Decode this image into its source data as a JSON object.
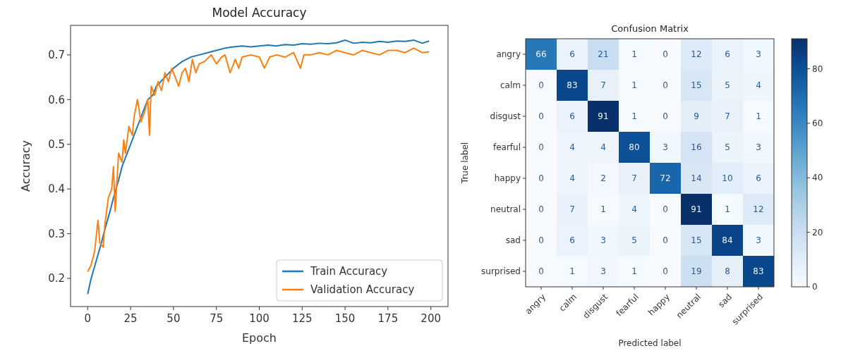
{
  "chart_data": [
    {
      "type": "line",
      "title": "Model Accuracy",
      "xlabel": "Epoch",
      "ylabel": "Accuracy",
      "xlim": [
        -10,
        210
      ],
      "ylim": [
        0.137,
        0.766
      ],
      "xticks": [
        0,
        25,
        50,
        75,
        100,
        125,
        150,
        175,
        200
      ],
      "yticks": [
        0.2,
        0.3,
        0.4,
        0.5,
        0.6,
        0.7
      ],
      "legend": "bottom right",
      "series": [
        {
          "name": "Train Accuracy",
          "color": "#1f77b4",
          "x": [
            0,
            2,
            5,
            8,
            10,
            13,
            15,
            18,
            20,
            23,
            25,
            28,
            30,
            33,
            35,
            38,
            40,
            45,
            50,
            55,
            60,
            65,
            70,
            75,
            80,
            85,
            90,
            95,
            100,
            105,
            110,
            115,
            120,
            125,
            130,
            135,
            140,
            145,
            150,
            155,
            160,
            165,
            170,
            175,
            180,
            185,
            190,
            195,
            199
          ],
          "values": [
            0.165,
            0.2,
            0.24,
            0.28,
            0.31,
            0.35,
            0.38,
            0.42,
            0.45,
            0.48,
            0.5,
            0.53,
            0.55,
            0.58,
            0.6,
            0.61,
            0.63,
            0.65,
            0.67,
            0.685,
            0.695,
            0.7,
            0.705,
            0.71,
            0.715,
            0.718,
            0.72,
            0.718,
            0.72,
            0.722,
            0.72,
            0.723,
            0.722,
            0.725,
            0.724,
            0.726,
            0.725,
            0.727,
            0.733,
            0.726,
            0.728,
            0.727,
            0.73,
            0.728,
            0.731,
            0.73,
            0.733,
            0.726,
            0.731
          ]
        },
        {
          "name": "Validation Accuracy",
          "color": "#ff7f0e",
          "x": [
            0,
            2,
            4,
            6,
            7,
            9,
            10,
            12,
            14,
            15,
            16,
            18,
            20,
            21,
            22,
            24,
            26,
            27,
            29,
            31,
            33,
            35,
            36,
            37,
            39,
            41,
            43,
            45,
            47,
            49,
            51,
            53,
            55,
            57,
            59,
            61,
            63,
            65,
            68,
            72,
            75,
            78,
            80,
            83,
            86,
            88,
            90,
            95,
            100,
            103,
            106,
            110,
            115,
            120,
            124,
            126,
            130,
            135,
            140,
            145,
            150,
            155,
            160,
            165,
            170,
            175,
            180,
            185,
            190,
            195,
            199
          ],
          "values": [
            0.215,
            0.23,
            0.26,
            0.33,
            0.28,
            0.27,
            0.32,
            0.38,
            0.4,
            0.45,
            0.35,
            0.48,
            0.46,
            0.51,
            0.48,
            0.54,
            0.52,
            0.56,
            0.6,
            0.55,
            0.57,
            0.6,
            0.52,
            0.63,
            0.61,
            0.64,
            0.62,
            0.66,
            0.64,
            0.67,
            0.65,
            0.63,
            0.66,
            0.67,
            0.64,
            0.69,
            0.66,
            0.68,
            0.685,
            0.7,
            0.68,
            0.695,
            0.7,
            0.66,
            0.69,
            0.67,
            0.695,
            0.7,
            0.695,
            0.67,
            0.695,
            0.7,
            0.695,
            0.705,
            0.67,
            0.7,
            0.7,
            0.705,
            0.7,
            0.71,
            0.705,
            0.7,
            0.71,
            0.705,
            0.7,
            0.71,
            0.71,
            0.705,
            0.715,
            0.705,
            0.707
          ]
        }
      ]
    },
    {
      "type": "heatmap",
      "title": "Confusion Matrix",
      "xlabel": "Predicted label",
      "ylabel": "True label",
      "categories": [
        "angry",
        "calm",
        "disgust",
        "fearful",
        "happy",
        "neutral",
        "sad",
        "surprised"
      ],
      "y_categories": [
        "angry",
        "calm",
        "disgust",
        "fearful",
        "happy",
        "neutral",
        "sad",
        "surprised"
      ],
      "cells": [
        [
          66,
          6,
          21,
          1,
          0,
          12,
          6,
          3
        ],
        [
          0,
          83,
          7,
          1,
          0,
          15,
          5,
          4
        ],
        [
          0,
          6,
          91,
          1,
          0,
          9,
          7,
          1
        ],
        [
          0,
          4,
          4,
          80,
          3,
          16,
          5,
          3
        ],
        [
          0,
          4,
          2,
          7,
          72,
          14,
          10,
          6
        ],
        [
          0,
          7,
          1,
          4,
          0,
          91,
          1,
          12
        ],
        [
          0,
          6,
          3,
          5,
          0,
          15,
          84,
          3
        ],
        [
          0,
          1,
          3,
          1,
          0,
          19,
          8,
          83
        ]
      ],
      "clim": [
        0,
        91
      ],
      "cticks": [
        0,
        20,
        40,
        60,
        80
      ],
      "data_labels": true
    }
  ]
}
